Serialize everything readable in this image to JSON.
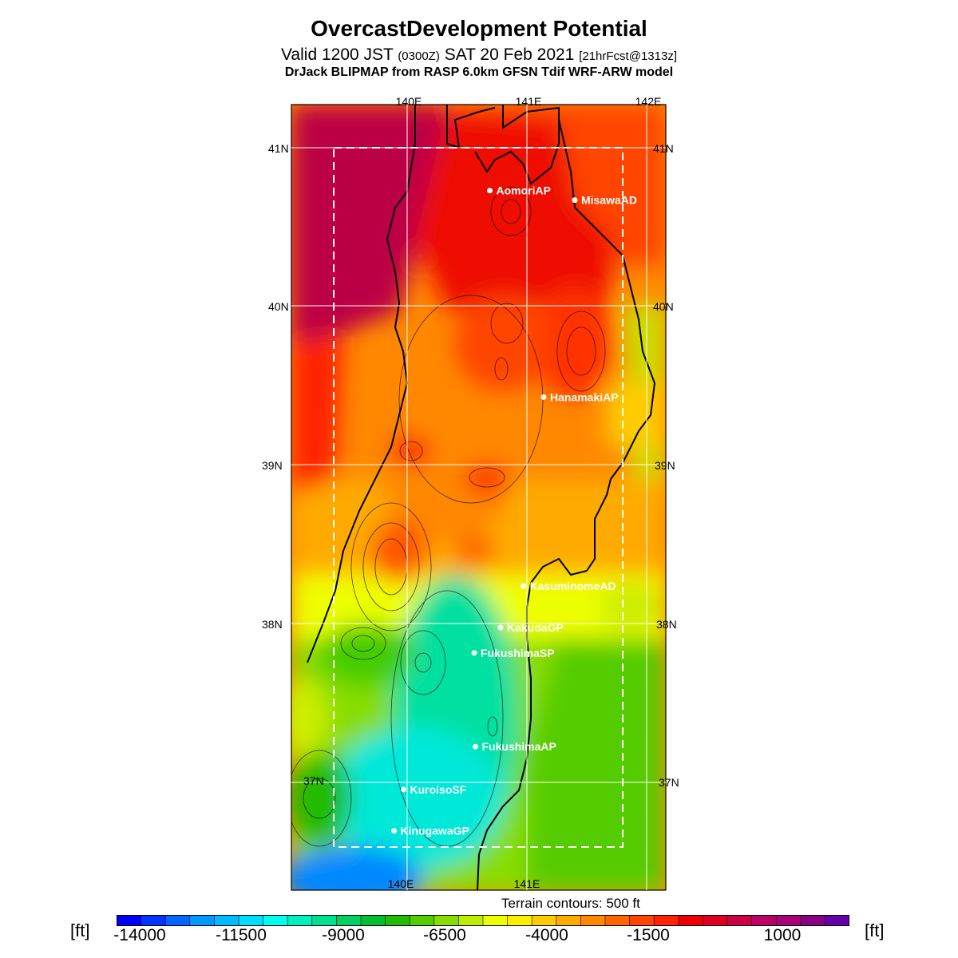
{
  "header": {
    "title": "OvercastDevelopment Potential",
    "subtitle_main": "Valid 1200 JST",
    "subtitle_utc": "(0300Z)",
    "subtitle_date": "SAT 20 Feb 2021",
    "subtitle_fcst": "[21hrFcst@1313z]",
    "model_line": "DrJack BLIPMAP from RASP 6.0km GFSN Tdif WRF-ARW model"
  },
  "map": {
    "lon_labels_top": [
      "140E",
      "141E",
      "142E"
    ],
    "lon_labels_bottom": [
      "140E",
      "141E"
    ],
    "lat_labels_left": [
      "41N",
      "40N",
      "39N",
      "38N",
      "37N"
    ],
    "lat_labels_right": [
      "41N",
      "40N",
      "39N",
      "38N",
      "37N"
    ],
    "stations": [
      {
        "name": "AomoriAP",
        "lon": 140.69,
        "lat": 40.73
      },
      {
        "name": "MisawaAD",
        "lon": 141.4,
        "lat": 40.67
      },
      {
        "name": "HanamakiAP",
        "lon": 141.14,
        "lat": 39.43
      },
      {
        "name": "KasuminomeAD",
        "lon": 140.97,
        "lat": 38.24
      },
      {
        "name": "KakudaGP",
        "lon": 140.78,
        "lat": 37.98
      },
      {
        "name": "FukushimaSP",
        "lon": 140.56,
        "lat": 37.82
      },
      {
        "name": "FukushimaAP",
        "lon": 140.57,
        "lat": 37.23
      },
      {
        "name": "KuroisoSF",
        "lon": 139.97,
        "lat": 36.96
      },
      {
        "name": "KinugawaGP",
        "lon": 139.89,
        "lat": 36.7
      }
    ],
    "contour_note": "Terrain contours: 500 ft"
  },
  "colorbar": {
    "unit": "[ft]",
    "tick_labels": [
      "-14000",
      "-11500",
      "-9000",
      "-6500",
      "-4000",
      "-1500",
      "1000"
    ],
    "colors": [
      "#0000ff",
      "#0033ff",
      "#0066ff",
      "#0099ff",
      "#00bbff",
      "#00ddff",
      "#00ffee",
      "#00f0c0",
      "#00e090",
      "#00d060",
      "#00c030",
      "#22bb00",
      "#55cc00",
      "#88dd00",
      "#bbee00",
      "#eeff00",
      "#ffee00",
      "#ffcc00",
      "#ffaa00",
      "#ff8800",
      "#ff6600",
      "#ff4400",
      "#ff2200",
      "#ee0000",
      "#dd0022",
      "#cc0044",
      "#bb0066",
      "#aa0077",
      "#880088",
      "#6600aa"
    ]
  }
}
